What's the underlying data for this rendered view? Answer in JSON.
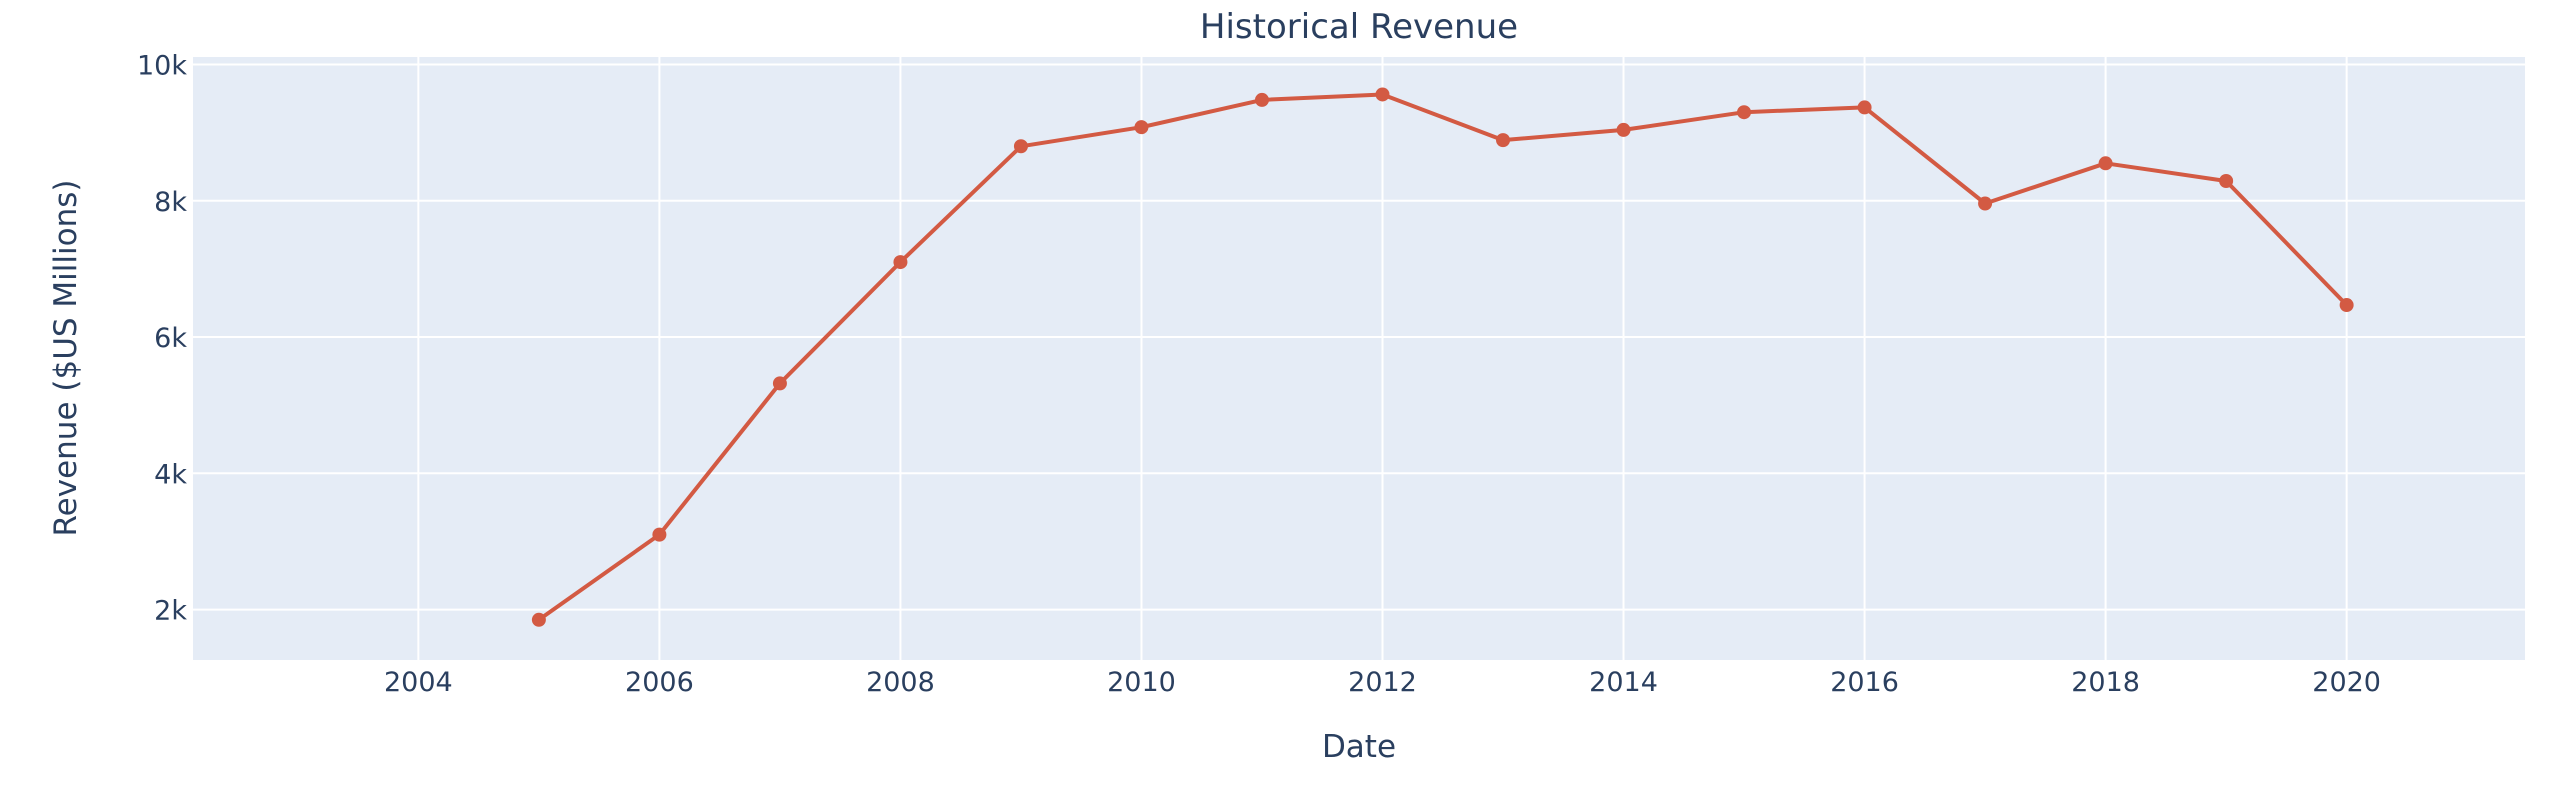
{
  "chart_data": {
    "type": "line",
    "title": "Historical Revenue",
    "xlabel": "Date",
    "ylabel": "Revenue ($US Millions)",
    "x": [
      2005,
      2006,
      2007,
      2008,
      2009,
      2010,
      2011,
      2012,
      2013,
      2014,
      2015,
      2016,
      2017,
      2018,
      2019,
      2020
    ],
    "values": [
      1850,
      3100,
      5320,
      7100,
      8800,
      9080,
      9480,
      9560,
      8890,
      9040,
      9300,
      9370,
      7960,
      8550,
      8290,
      6470
    ],
    "xlim": [
      2002.13,
      2021.48
    ],
    "ylim": [
      1260,
      10110
    ],
    "x_ticks": [
      2004,
      2006,
      2008,
      2010,
      2012,
      2014,
      2016,
      2018,
      2020
    ],
    "x_tick_labels": [
      "2004",
      "2006",
      "2008",
      "2010",
      "2012",
      "2014",
      "2016",
      "2018",
      "2020"
    ],
    "y_ticks": [
      2000,
      4000,
      6000,
      8000,
      10000
    ],
    "y_tick_labels": [
      "2k",
      "4k",
      "6k",
      "8k",
      "10k"
    ],
    "grid": true,
    "legend": "none",
    "colors": {
      "line": "#d35a43",
      "plot_background": "#e5ecf6",
      "grid": "#ffffff",
      "text": "#2a3f5f"
    }
  }
}
